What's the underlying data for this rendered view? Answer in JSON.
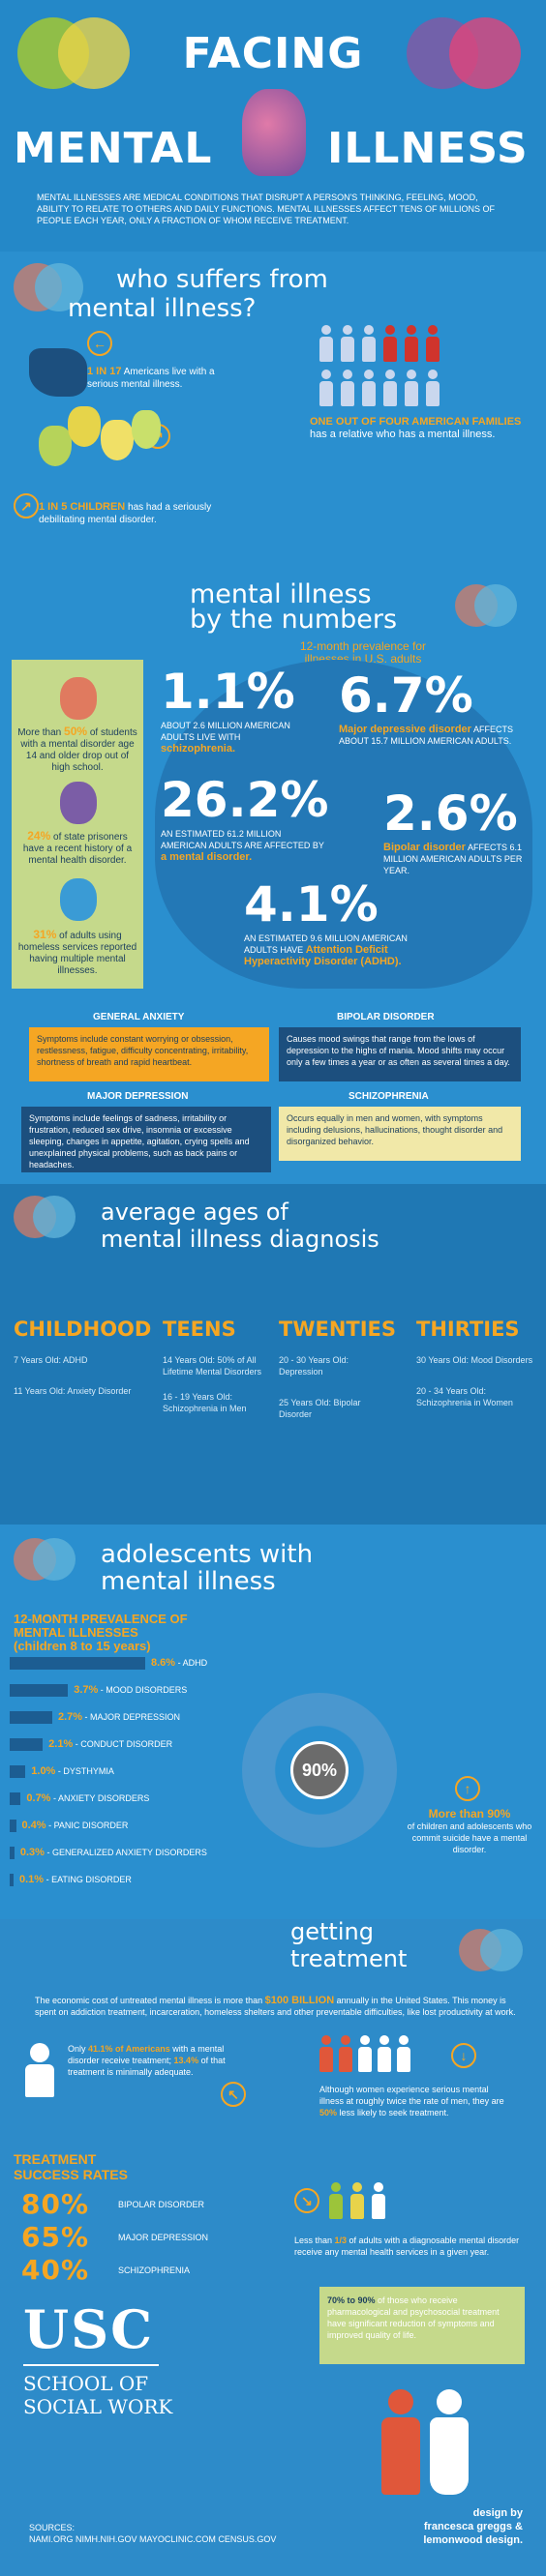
{
  "header": {
    "title_top": "FACING",
    "title_left": "MENTAL",
    "title_right": "ILLNESS",
    "intro": "MENTAL ILLNESSES ARE MEDICAL CONDITIONS THAT DISRUPT A PERSON'S THINKING, FEELING, MOOD, ABILITY TO RELATE TO OTHERS AND DAILY FUNCTIONS. MENTAL ILLNESSES AFFECT TENS OF MILLIONS OF PEOPLE EACH YEAR, ONLY A FRACTION OF WHOM RECEIVE TREATMENT."
  },
  "who": {
    "title_1": "who suffers from",
    "title_2": "mental illness?",
    "stat1_hl": "1 IN 17",
    "stat1_rest": " Americans live with a serious mental illness.",
    "stat2_hl": "ONE OUT OF FOUR AMERICAN FAMILIES",
    "stat2_rest": " has a relative who has a mental illness.",
    "stat3_hl": "1 IN 5 CHILDREN",
    "stat3_rest": " has had a seriously debilitating mental disorder."
  },
  "numbers": {
    "title_1": "mental illness",
    "title_2": "by the numbers",
    "subtitle": "12-month prevalence for illnesses in U.S. adults",
    "side": [
      {
        "hl": "50%",
        "pre": "More than ",
        "rest": " of students with a mental disorder age 14 and older drop out of high school."
      },
      {
        "hl": "24%",
        "pre": "",
        "rest": " of state prisoners have a recent history of a mental health disorder."
      },
      {
        "hl": "31%",
        "pre": "",
        "rest": " of adults using homeless services reported having multiple mental illnesses."
      }
    ],
    "stats": [
      {
        "value": "1.1%",
        "text": "ABOUT 2.6 MILLION AMERICAN ADULTS LIVE WITH ",
        "hl": "schizophrenia."
      },
      {
        "value": "6.7%",
        "hl": "Major depressive disorder",
        "text": " AFFECTS ABOUT 15.7 MILLION AMERICAN ADULTS."
      },
      {
        "value": "26.2%",
        "text": "AN ESTIMATED 61.2 MILLION AMERICAN ADULTS ARE AFFECTED BY ",
        "hl": "a mental disorder."
      },
      {
        "value": "2.6%",
        "hl": "Bipolar disorder",
        "text": " AFFECTS 6.1 MILLION AMERICAN ADULTS PER YEAR."
      },
      {
        "value": "4.1%",
        "text": "AN ESTIMATED 9.6 MILLION AMERICAN ADULTS HAVE ",
        "hl": "Attention Deficit Hyperactivity Disorder (ADHD)."
      }
    ]
  },
  "disorders": [
    {
      "title": "GENERAL ANXIETY",
      "text": "Symptoms include constant worrying or obsession, restlessness, fatigue, difficulty concentrating, irritability, shortness of breath and rapid heartbeat."
    },
    {
      "title": "BIPOLAR DISORDER",
      "text": "Causes mood swings that range from the lows of depression to the highs of mania. Mood shifts may occur only a few times a year or as often as several times a day."
    },
    {
      "title": "MAJOR DEPRESSION",
      "text": "Symptoms include feelings of sadness, irritability or frustration, reduced sex drive, insomnia or excessive sleeping, changes in appetite, agitation, crying spells and unexplained physical problems, such as back pains or headaches."
    },
    {
      "title": "SCHIZOPHRENIA",
      "text": "Occurs equally in men and women, with symptoms including delusions, hallucinations, thought disorder and disorganized behavior."
    }
  ],
  "ages": {
    "title_1": "average ages of",
    "title_2": "mental illness diagnosis",
    "cols": [
      {
        "head": "CHILDHOOD",
        "a": "7 Years Old: ADHD",
        "b": "11 Years Old: Anxiety Disorder",
        "c": ""
      },
      {
        "head": "TEENS",
        "a": "14 Years Old: 50% of All Lifetime Mental Disorders",
        "b": "16 - 19 Years Old: Schizophrenia in Men",
        "c": ""
      },
      {
        "head": "TWENTIES",
        "a": "20 - 30 Years Old: Depression",
        "b": "25 Years Old: Bipolar Disorder",
        "c": ""
      },
      {
        "head": "THIRTIES",
        "a": "30 Years Old: Mood Disorders",
        "b": "20 - 34 Years Old: Schizophrenia in Women",
        "c": ""
      }
    ]
  },
  "adolescents": {
    "title_1": "adolescents with",
    "title_2": "mental illness",
    "sub_1": "12-MONTH PREVALENCE OF",
    "sub_2": "MENTAL ILLNESSES",
    "sub_3": "(children 8 to 15 years)",
    "bars": [
      {
        "pct": 8.6,
        "label": "8.6%",
        "name": " - ADHD"
      },
      {
        "pct": 3.7,
        "label": "3.7%",
        "name": " - Mood Disorders"
      },
      {
        "pct": 2.7,
        "label": "2.7%",
        "name": " - Major Depression"
      },
      {
        "pct": 2.1,
        "label": "2.1%",
        "name": " - Conduct Disorder"
      },
      {
        "pct": 1.0,
        "label": "1.0%",
        "name": " - Dysthymia"
      },
      {
        "pct": 0.7,
        "label": "0.7%",
        "name": " - Anxiety Disorders"
      },
      {
        "pct": 0.4,
        "label": "0.4%",
        "name": " - Panic Disorder"
      },
      {
        "pct": 0.3,
        "label": "0.3%",
        "name": " - Generalized Anxiety Disorders"
      },
      {
        "pct": 0.1,
        "label": "0.1%",
        "name": " - Eating Disorder"
      }
    ],
    "circle": "90%",
    "note_hl": "More than 90%",
    "note_rest": "of children and adolescents who commit suicide have a mental disorder."
  },
  "treatment": {
    "title_1": "getting",
    "title_2": "treatment",
    "cost_pre": "The economic cost of untreated mental illness is more than ",
    "cost_hl": "$100 BILLION",
    "cost_rest": " annually in the United States. This money is spent on addiction treatment, incarceration, homeless shelters and other preventable difficulties, like lost productivity at work.",
    "only_pre": "Only ",
    "only_hl": "41.1% of Americans",
    "only_mid": " with a mental disorder receive treatment; ",
    "only_hl2": "13.4%",
    "only_rest": " of that treatment is minimally adequate.",
    "women_pre": "Although women experience serious mental illness at roughly twice the rate of men, they are ",
    "women_hl": "50%",
    "women_rest": " less likely to seek treatment.",
    "rates_title_1": "TREATMENT",
    "rates_title_2": "SUCCESS RATES",
    "rates": [
      {
        "value": "80%",
        "label": "Bipolar Disorder"
      },
      {
        "value": "65%",
        "label": "Major Depression"
      },
      {
        "value": "40%",
        "label": "Schizophrenia"
      }
    ],
    "third_pre": "Less than ",
    "third_hl": "1/3",
    "third_rest": " of adults with a diagnosable mental disorder receive any mental health services in a given year.",
    "callout_hl": "70% to 90%",
    "callout_rest": " of those who receive pharmacological and psychosocial treatment have significant reduction of symptoms and improved quality of life."
  },
  "footer": {
    "logo": "USC",
    "school_1": "SCHOOL OF",
    "school_2": "SOCIAL WORK",
    "sources_label": "SOURCES:",
    "sources": "NAMI.ORG   NIMH.NIH.GOV   MAYOCLINIC.COM   CENSUS.GOV",
    "design_1": "design by",
    "design_2": "francesca greggs &",
    "design_3": "lemonwood design."
  },
  "colors": {
    "accent": "#f5a623",
    "bg": "#2a8fcf",
    "dark": "#1c5d92",
    "red": "#d0342c"
  }
}
